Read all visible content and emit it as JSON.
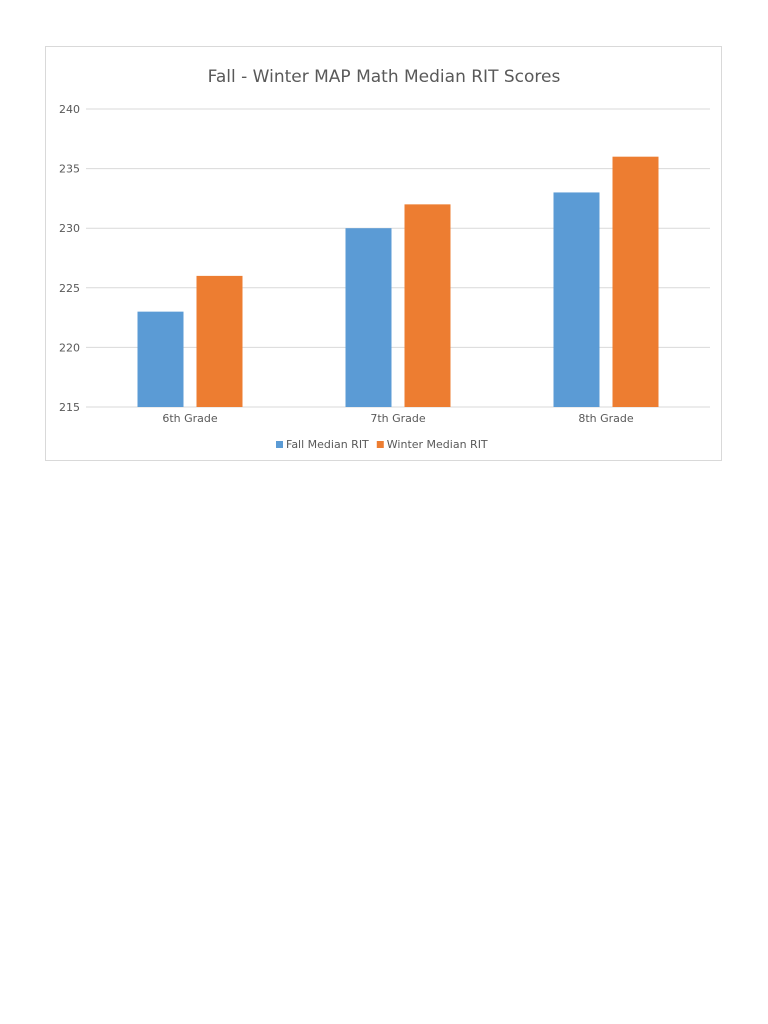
{
  "chart_data": {
    "type": "bar",
    "title": "Fall - Winter MAP Math Median RIT Scores",
    "xlabel": "",
    "ylabel": "",
    "categories": [
      "6th Grade",
      "7th Grade",
      "8th Grade"
    ],
    "series": [
      {
        "name": "Fall Median RIT",
        "values": [
          223,
          230,
          233
        ],
        "color": "#5b9bd5"
      },
      {
        "name": "Winter Median RIT",
        "values": [
          226,
          232,
          236
        ],
        "color": "#ed7d31"
      }
    ],
    "ylim": [
      215,
      240
    ],
    "yticks": [
      215,
      220,
      225,
      230,
      235,
      240
    ],
    "grid": true,
    "legend_position": "bottom"
  }
}
